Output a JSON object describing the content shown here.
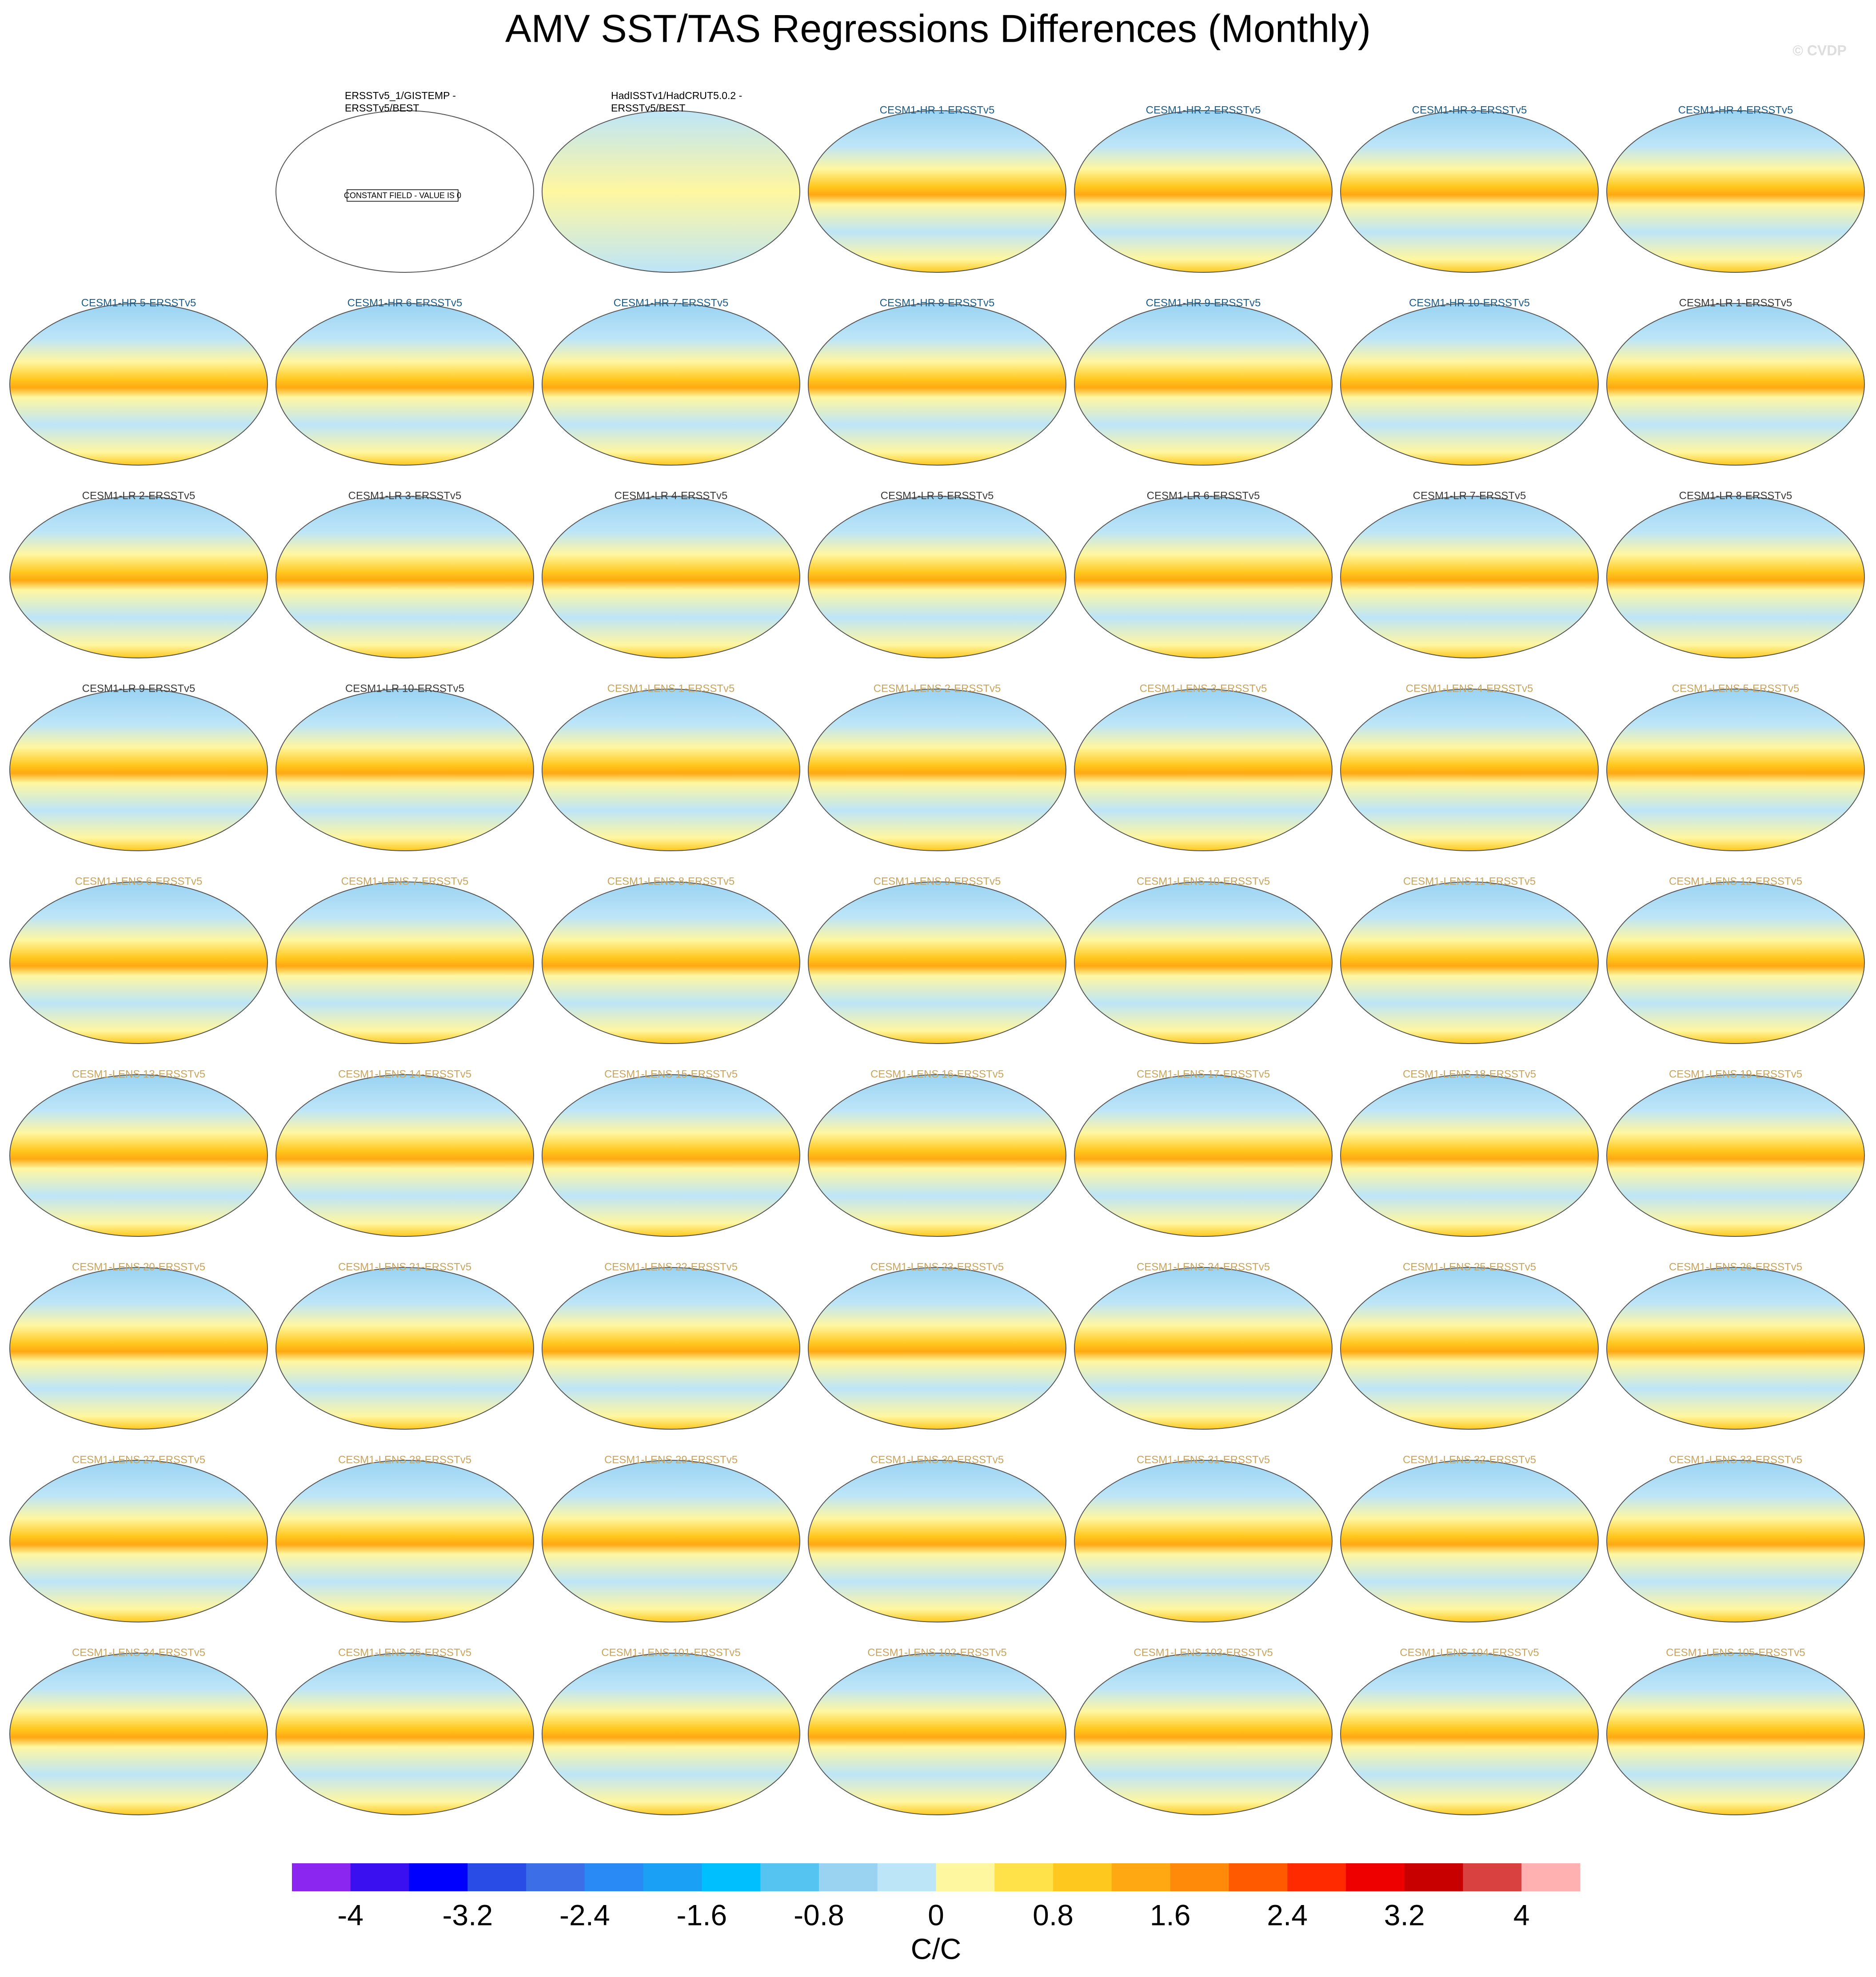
{
  "title": "AMV SST/TAS Regressions Differences (Monthly)",
  "watermark": "© CVDP",
  "panels": [
    {
      "title": [
        "ERSSTv5_1/GISTEMP -",
        "ERSSTv5/BEST"
      ],
      "title_color": "#000000",
      "note": "CONSTANT FIELD - VALUE IS 0"
    },
    {
      "title": [
        "HadISSTv1/HadCRUT5.0.2 -",
        "ERSSTv5/BEST"
      ],
      "title_color": "#000000"
    },
    {
      "title": "CESM1-HR 1-ERSSTv5",
      "title_color": "#1d5d8a"
    },
    {
      "title": "CESM1-HR 2-ERSSTv5",
      "title_color": "#1d5d8a"
    },
    {
      "title": "CESM1-HR 3-ERSSTv5",
      "title_color": "#1d5d8a"
    },
    {
      "title": "CESM1-HR 4-ERSSTv5",
      "title_color": "#1d5d8a"
    },
    {
      "title": "CESM1-HR 5-ERSSTv5",
      "title_color": "#1d5d8a"
    },
    {
      "title": "CESM1-HR 6-ERSSTv5",
      "title_color": "#1d5d8a"
    },
    {
      "title": "CESM1-HR 7-ERSSTv5",
      "title_color": "#1d5d8a"
    },
    {
      "title": "CESM1-HR 8-ERSSTv5",
      "title_color": "#1d5d8a"
    },
    {
      "title": "CESM1-HR 9-ERSSTv5",
      "title_color": "#1d5d8a"
    },
    {
      "title": "CESM1-HR 10-ERSSTv5",
      "title_color": "#1d5d8a"
    },
    {
      "title": "CESM1-LR 1-ERSSTv5",
      "title_color": "#3a3a3a"
    },
    {
      "title": "CESM1-LR 2-ERSSTv5",
      "title_color": "#3a3a3a"
    },
    {
      "title": "CESM1-LR 3-ERSSTv5",
      "title_color": "#3a3a3a"
    },
    {
      "title": "CESM1-LR 4-ERSSTv5",
      "title_color": "#3a3a3a"
    },
    {
      "title": "CESM1-LR 5-ERSSTv5",
      "title_color": "#3a3a3a"
    },
    {
      "title": "CESM1-LR 6-ERSSTv5",
      "title_color": "#3a3a3a"
    },
    {
      "title": "CESM1-LR 7-ERSSTv5",
      "title_color": "#3a3a3a"
    },
    {
      "title": "CESM1-LR 8-ERSSTv5",
      "title_color": "#3a3a3a"
    },
    {
      "title": "CESM1-LR 9-ERSSTv5",
      "title_color": "#3a3a3a"
    },
    {
      "title": "CESM1-LR 10-ERSSTv5",
      "title_color": "#3a3a3a"
    },
    {
      "title": "CESM1-LENS 1-ERSSTv5",
      "title_color": "#c9a45c"
    },
    {
      "title": "CESM1-LENS 2-ERSSTv5",
      "title_color": "#c9a45c"
    },
    {
      "title": "CESM1-LENS 3-ERSSTv5",
      "title_color": "#c9a45c"
    },
    {
      "title": "CESM1-LENS 4-ERSSTv5",
      "title_color": "#c9a45c"
    },
    {
      "title": "CESM1-LENS 5-ERSSTv5",
      "title_color": "#c9a45c"
    },
    {
      "title": "CESM1-LENS 6-ERSSTv5",
      "title_color": "#c9a45c"
    },
    {
      "title": "CESM1-LENS 7-ERSSTv5",
      "title_color": "#c9a45c"
    },
    {
      "title": "CESM1-LENS 8-ERSSTv5",
      "title_color": "#c9a45c"
    },
    {
      "title": "CESM1-LENS 9-ERSSTv5",
      "title_color": "#c9a45c"
    },
    {
      "title": "CESM1-LENS 10-ERSSTv5",
      "title_color": "#c9a45c"
    },
    {
      "title": "CESM1-LENS 11-ERSSTv5",
      "title_color": "#c9a45c"
    },
    {
      "title": "CESM1-LENS 12-ERSSTv5",
      "title_color": "#c9a45c"
    },
    {
      "title": "CESM1-LENS 13-ERSSTv5",
      "title_color": "#c9a45c"
    },
    {
      "title": "CESM1-LENS 14-ERSSTv5",
      "title_color": "#c9a45c"
    },
    {
      "title": "CESM1-LENS 15-ERSSTv5",
      "title_color": "#c9a45c"
    },
    {
      "title": "CESM1-LENS 16-ERSSTv5",
      "title_color": "#c9a45c"
    },
    {
      "title": "CESM1-LENS 17-ERSSTv5",
      "title_color": "#c9a45c"
    },
    {
      "title": "CESM1-LENS 18-ERSSTv5",
      "title_color": "#c9a45c"
    },
    {
      "title": "CESM1-LENS 19-ERSSTv5",
      "title_color": "#c9a45c"
    },
    {
      "title": "CESM1-LENS 20-ERSSTv5",
      "title_color": "#c9a45c"
    },
    {
      "title": "CESM1-LENS 21-ERSSTv5",
      "title_color": "#c9a45c"
    },
    {
      "title": "CESM1-LENS 22-ERSSTv5",
      "title_color": "#c9a45c"
    },
    {
      "title": "CESM1-LENS 23-ERSSTv5",
      "title_color": "#c9a45c"
    },
    {
      "title": "CESM1-LENS 24-ERSSTv5",
      "title_color": "#c9a45c"
    },
    {
      "title": "CESM1-LENS 25-ERSSTv5",
      "title_color": "#c9a45c"
    },
    {
      "title": "CESM1-LENS 26-ERSSTv5",
      "title_color": "#c9a45c"
    },
    {
      "title": "CESM1-LENS 27-ERSSTv5",
      "title_color": "#c9a45c"
    },
    {
      "title": "CESM1-LENS 28-ERSSTv5",
      "title_color": "#c9a45c"
    },
    {
      "title": "CESM1-LENS 29-ERSSTv5",
      "title_color": "#c9a45c"
    },
    {
      "title": "CESM1-LENS 30-ERSSTv5",
      "title_color": "#c9a45c"
    },
    {
      "title": "CESM1-LENS 31-ERSSTv5",
      "title_color": "#c9a45c"
    },
    {
      "title": "CESM1-LENS 32-ERSSTv5",
      "title_color": "#c9a45c"
    },
    {
      "title": "CESM1-LENS 33-ERSSTv5",
      "title_color": "#c9a45c"
    },
    {
      "title": "CESM1-LENS 34-ERSSTv5",
      "title_color": "#c9a45c"
    },
    {
      "title": "CESM1-LENS 35-ERSSTv5",
      "title_color": "#c9a45c"
    },
    {
      "title": "CESM1-LENS 101-ERSSTv5",
      "title_color": "#c9a45c"
    },
    {
      "title": "CESM1-LENS 102-ERSSTv5",
      "title_color": "#c9a45c"
    },
    {
      "title": "CESM1-LENS 103-ERSSTv5",
      "title_color": "#c9a45c"
    },
    {
      "title": "CESM1-LENS 104-ERSSTv5",
      "title_color": "#c9a45c"
    },
    {
      "title": "CESM1-LENS 105-ERSSTv5",
      "title_color": "#c9a45c"
    }
  ],
  "colorbar": {
    "label": "C/C",
    "lim": [
      -4.4,
      4.4
    ],
    "ticks": [
      -4,
      -3.2,
      -2.4,
      -1.6,
      -0.8,
      0,
      0.8,
      1.6,
      2.4,
      3.2,
      4
    ],
    "colors": [
      "#8a26f0",
      "#3a10f0",
      "#0000ff",
      "#2a4ce6",
      "#3c6ee8",
      "#2a8af5",
      "#1aa0f5",
      "#00bfff",
      "#55c4f0",
      "#9ad3f2",
      "#bde5f8",
      "#fff7a0",
      "#ffe24a",
      "#ffc81e",
      "#ffa812",
      "#ff8a0a",
      "#ff5a00",
      "#ff2a00",
      "#ee0000",
      "#c80000",
      "#d94040",
      "#ffb0b0"
    ]
  }
}
